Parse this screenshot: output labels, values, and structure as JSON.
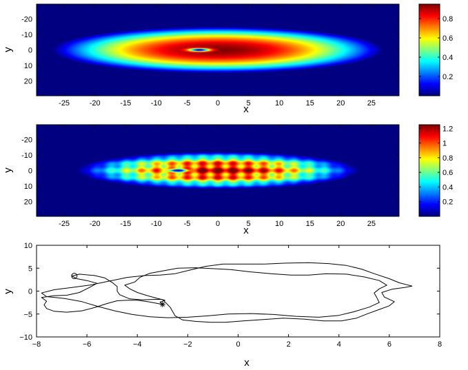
{
  "chart_data": [
    {
      "type": "heatmap",
      "title": "",
      "xlabel": "x",
      "ylabel": "y",
      "xlim": [
        -29.5,
        29.5
      ],
      "ylim": [
        -29.5,
        29.5
      ],
      "y_reversed": true,
      "xticks": [
        -25,
        -20,
        -15,
        -10,
        -5,
        0,
        5,
        10,
        15,
        20,
        25
      ],
      "yticks": [
        -20,
        -10,
        0,
        10,
        20
      ],
      "colormap": "jet",
      "colorbar": {
        "min": 0,
        "max": 0.95,
        "ticks": [
          0.2,
          0.4,
          0.6,
          0.8
        ]
      },
      "field": {
        "peak": 0.95,
        "center_x": 0,
        "radius_x": 27,
        "radius_y": 15,
        "vortex": {
          "x": -3,
          "y": 0
        }
      }
    },
    {
      "type": "heatmap",
      "title": "",
      "xlabel": "x",
      "ylabel": "y",
      "xlim": [
        -29.5,
        29.5
      ],
      "ylim": [
        -29.5,
        29.5
      ],
      "y_reversed": true,
      "xticks": [
        -25,
        -20,
        -15,
        -10,
        -5,
        0,
        5,
        10,
        15,
        20,
        25
      ],
      "yticks": [
        -20,
        -10,
        0,
        10,
        20
      ],
      "colormap": "jet",
      "colorbar": {
        "min": 0,
        "max": 1.25,
        "ticks": [
          0.2,
          0.4,
          0.6,
          0.8,
          1,
          1.2
        ]
      },
      "field": {
        "peak": 1.25,
        "center_x": 0,
        "radius_x": 23,
        "radius_y": 12,
        "lattice_period_x": 2.5,
        "lattice_period_y": 5,
        "vortex": {
          "x": -6.5,
          "y": 0
        }
      }
    },
    {
      "type": "line",
      "title": "",
      "xlabel": "x",
      "ylabel": "y",
      "xlim": [
        -8,
        8
      ],
      "ylim": [
        -10,
        10
      ],
      "xticks": [
        -8,
        -6,
        -4,
        -2,
        0,
        2,
        4,
        6,
        8
      ],
      "yticks": [
        -10,
        -5,
        0,
        5,
        10
      ],
      "series": [
        {
          "points": [
            [
              -3.0,
              -2.9
            ],
            [
              -3.3,
              -2.6
            ],
            [
              -3.6,
              -2.3
            ],
            [
              -4.0,
              -2.0
            ],
            [
              -4.4,
              -2.0
            ],
            [
              -4.8,
              -2.1
            ],
            [
              -5.2,
              -2.7
            ],
            [
              -5.7,
              -3.6
            ],
            [
              -6.2,
              -4.3
            ],
            [
              -6.8,
              -4.6
            ],
            [
              -7.3,
              -4.4
            ],
            [
              -7.6,
              -3.8
            ],
            [
              -7.7,
              -3.0
            ],
            [
              -7.6,
              -2.2
            ],
            [
              -7.8,
              -1.4
            ],
            [
              -7.3,
              -1.0
            ],
            [
              -6.8,
              -0.9
            ],
            [
              -6.3,
              -0.3
            ],
            [
              -5.9,
              0.8
            ],
            [
              -5.6,
              1.7
            ],
            [
              -6.0,
              2.3
            ],
            [
              -6.4,
              2.7
            ],
            [
              -6.6,
              3.3
            ],
            [
              -6.3,
              3.7
            ],
            [
              -5.7,
              3.4
            ],
            [
              -5.3,
              2.9
            ],
            [
              -5.0,
              1.9
            ],
            [
              -4.8,
              1.0
            ],
            [
              -4.8,
              0.0
            ],
            [
              -4.7,
              -0.8
            ],
            [
              -4.3,
              -1.7
            ],
            [
              -3.8,
              -1.9
            ],
            [
              -3.3,
              -1.8
            ],
            [
              -3.0,
              -1.8
            ],
            [
              -2.7,
              -3.5
            ],
            [
              -2.5,
              -5.4
            ],
            [
              -2.2,
              -6.3
            ],
            [
              -1.7,
              -6.6
            ],
            [
              -1.1,
              -6.8
            ],
            [
              -0.5,
              -6.8
            ],
            [
              0.2,
              -6.5
            ],
            [
              1.0,
              -6.2
            ],
            [
              1.8,
              -5.9
            ],
            [
              2.6,
              -6.1
            ],
            [
              3.4,
              -6.5
            ],
            [
              4.1,
              -6.5
            ],
            [
              4.7,
              -5.9
            ],
            [
              5.1,
              -5.0
            ],
            [
              5.6,
              -4.0
            ],
            [
              6.0,
              -3.2
            ],
            [
              6.2,
              -2.3
            ],
            [
              5.8,
              -1.3
            ],
            [
              5.7,
              -0.3
            ],
            [
              6.1,
              0.4
            ],
            [
              6.6,
              0.8
            ],
            [
              6.9,
              1.1
            ],
            [
              6.4,
              1.8
            ],
            [
              6.0,
              2.7
            ],
            [
              5.4,
              3.8
            ],
            [
              4.9,
              4.8
            ],
            [
              4.3,
              5.6
            ],
            [
              3.6,
              6.0
            ],
            [
              2.8,
              6.2
            ],
            [
              1.9,
              6.1
            ],
            [
              1.0,
              5.9
            ],
            [
              0.2,
              5.9
            ],
            [
              -0.6,
              5.9
            ],
            [
              -1.3,
              5.4
            ],
            [
              -1.9,
              4.6
            ],
            [
              -2.5,
              3.8
            ],
            [
              -3.1,
              3.5
            ],
            [
              -3.7,
              3.4
            ],
            [
              -4.4,
              3.0
            ],
            [
              -5.1,
              2.2
            ],
            [
              -5.9,
              1.3
            ],
            [
              -6.6,
              0.8
            ],
            [
              -7.3,
              0.3
            ],
            [
              -7.8,
              -0.4
            ],
            [
              -7.6,
              -1.2
            ],
            [
              -6.9,
              -1.6
            ],
            [
              -6.2,
              -2.3
            ],
            [
              -5.6,
              -3.3
            ],
            [
              -4.9,
              -4.3
            ],
            [
              -4.2,
              -5.1
            ],
            [
              -3.5,
              -5.6
            ],
            [
              -2.8,
              -5.8
            ],
            [
              -2.0,
              -5.7
            ],
            [
              -1.2,
              -5.4
            ],
            [
              -0.4,
              -5.0
            ],
            [
              0.5,
              -4.9
            ],
            [
              1.4,
              -5.1
            ],
            [
              2.3,
              -5.5
            ],
            [
              3.2,
              -5.7
            ],
            [
              4.0,
              -5.3
            ],
            [
              4.6,
              -4.5
            ],
            [
              5.2,
              -3.5
            ],
            [
              5.6,
              -2.5
            ],
            [
              5.5,
              -1.4
            ],
            [
              5.4,
              -0.4
            ],
            [
              5.6,
              0.5
            ],
            [
              5.9,
              1.3
            ],
            [
              5.6,
              2.3
            ],
            [
              5.0,
              3.1
            ],
            [
              4.3,
              3.7
            ],
            [
              3.5,
              3.8
            ],
            [
              2.8,
              3.5
            ],
            [
              2.1,
              3.5
            ],
            [
              1.3,
              3.8
            ],
            [
              0.5,
              4.2
            ],
            [
              -0.3,
              4.7
            ],
            [
              -1.0,
              4.9
            ],
            [
              -1.7,
              5.1
            ],
            [
              -2.4,
              5.0
            ],
            [
              -3.0,
              4.4
            ],
            [
              -3.5,
              3.9
            ],
            [
              -3.9,
              3.0
            ],
            [
              -4.1,
              2.0
            ],
            [
              -4.5,
              1.3
            ],
            [
              -4.3,
              0.5
            ],
            [
              -4.0,
              -0.3
            ],
            [
              -3.6,
              -1.0
            ],
            [
              -3.2,
              -1.6
            ],
            [
              -2.9,
              -2.0
            ],
            [
              -3.1,
              -2.4
            ],
            [
              -3.0,
              -2.9
            ]
          ]
        }
      ],
      "markers": [
        {
          "symbol": "circle",
          "x": -6.5,
          "y": 3.3
        },
        {
          "symbol": "asterisk",
          "x": -3.0,
          "y": -2.9
        }
      ]
    }
  ]
}
